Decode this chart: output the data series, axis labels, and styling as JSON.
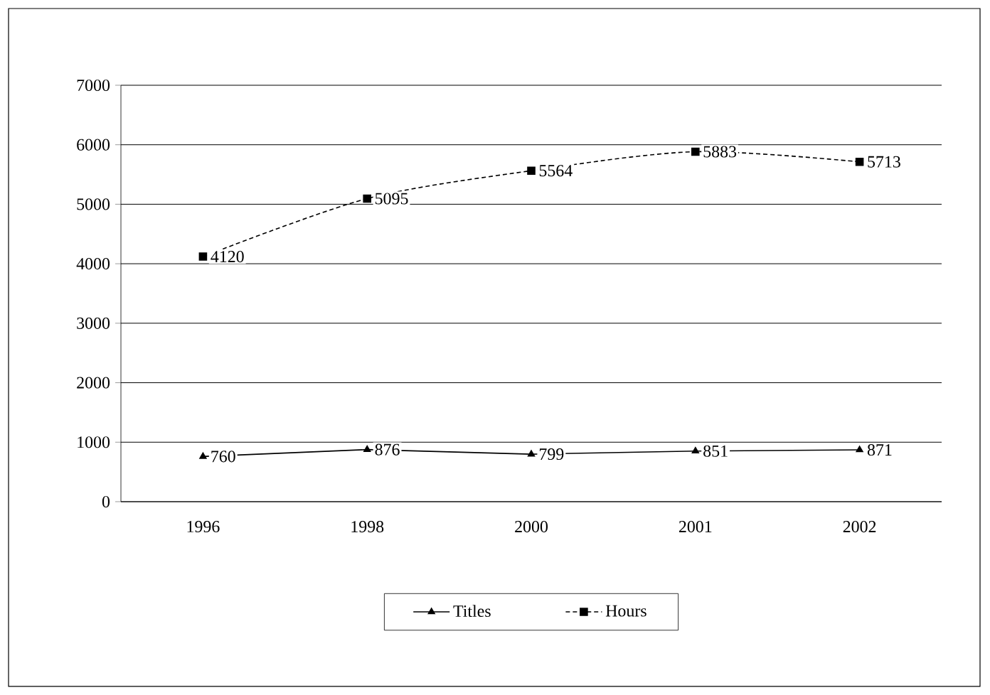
{
  "chart_data": {
    "type": "line",
    "categories": [
      "1996",
      "1998",
      "2000",
      "2001",
      "2002"
    ],
    "series": [
      {
        "name": "Titles",
        "color": "#000000",
        "values": [
          760,
          876,
          799,
          851,
          871
        ],
        "marker": "triangle",
        "line_style": "solid"
      },
      {
        "name": "Hours",
        "color": "#000000",
        "values": [
          4120,
          5095,
          5564,
          5883,
          5713
        ],
        "marker": "square",
        "line_style": "dashed"
      }
    ],
    "ylim": [
      0,
      7000
    ],
    "yticks": [
      0,
      1000,
      2000,
      3000,
      4000,
      5000,
      6000,
      7000
    ],
    "grid": "y",
    "legend": "bottom",
    "data_labels": true
  }
}
